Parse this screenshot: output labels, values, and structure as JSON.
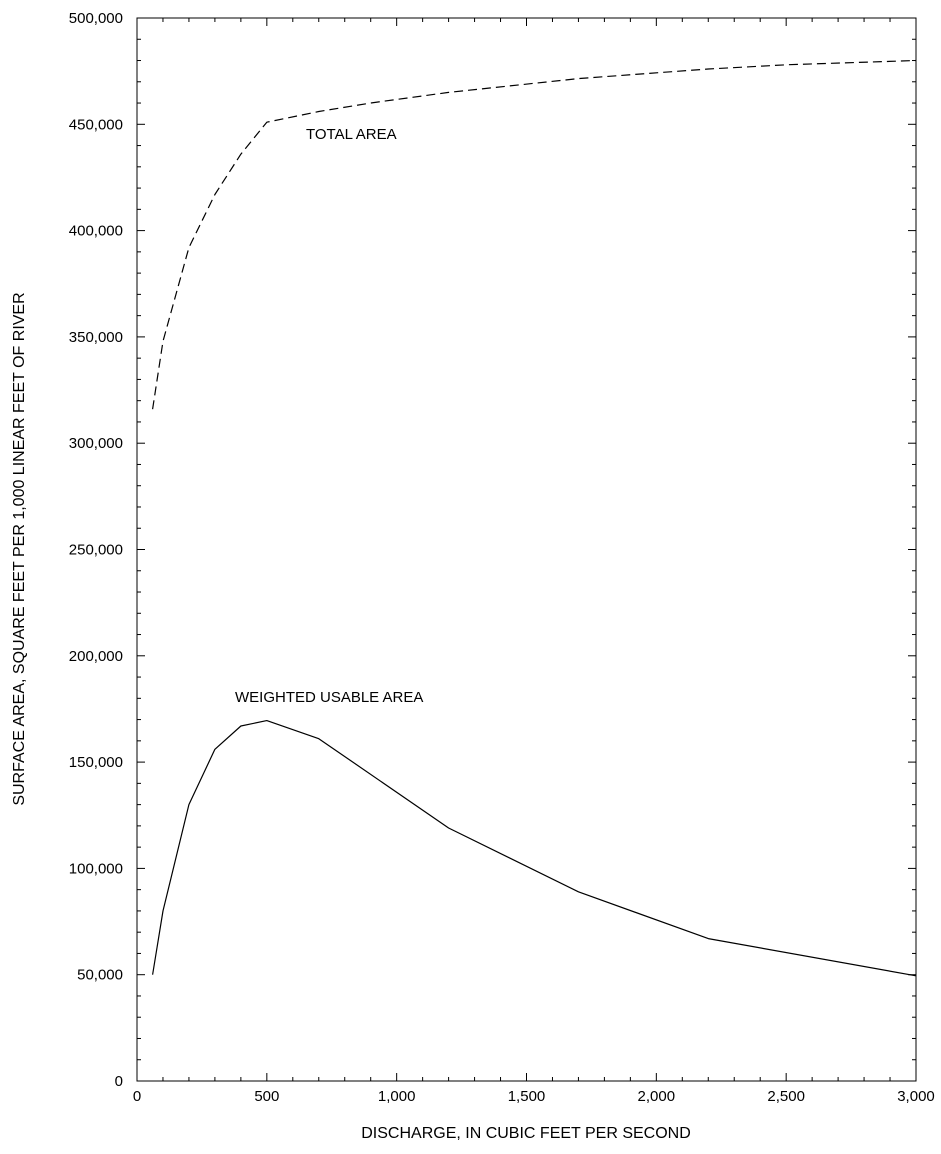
{
  "chart_data": {
    "type": "line",
    "xlabel": "DISCHARGE, IN CUBIC FEET PER SECOND",
    "ylabel": "SURFACE AREA, SQUARE FEET PER 1,000 LINEAR FEET OF RIVER",
    "xlim": [
      0,
      3000
    ],
    "ylim": [
      0,
      500000
    ],
    "x_ticks": [
      0,
      500,
      1000,
      1500,
      2000,
      2500,
      3000
    ],
    "x_tick_labels": [
      "0",
      "500",
      "1,000",
      "1,500",
      "2,000",
      "2,500",
      "3,000"
    ],
    "y_ticks": [
      0,
      50000,
      100000,
      150000,
      200000,
      250000,
      300000,
      350000,
      400000,
      450000,
      500000
    ],
    "y_tick_labels": [
      "0",
      "50,000",
      "100,000",
      "150,000",
      "200,000",
      "250,000",
      "300,000",
      "350,000",
      "400,000",
      "450,000",
      "500,000"
    ],
    "grid": false,
    "series": [
      {
        "name": "TOTAL AREA",
        "style": "dashed",
        "color": "#000000",
        "x": [
          60,
          100,
          200,
          300,
          400,
          500,
          700,
          900,
          1200,
          1700,
          2200,
          2500,
          3000
        ],
        "y": [
          316000,
          348000,
          392000,
          417000,
          436000,
          451000,
          456000,
          460000,
          465000,
          471500,
          476000,
          478000,
          480000
        ]
      },
      {
        "name": "WEIGHTED USABLE AREA",
        "style": "solid",
        "color": "#000000",
        "x": [
          60,
          100,
          200,
          300,
          400,
          500,
          700,
          1200,
          1700,
          2200,
          3000
        ],
        "y": [
          50000,
          80000,
          130000,
          156000,
          167000,
          169500,
          161000,
          119000,
          89000,
          67000,
          49500
        ]
      }
    ],
    "annotations": [
      {
        "text": "TOTAL AREA",
        "series": 0
      },
      {
        "text": "WEIGHTED USABLE AREA",
        "series": 1
      }
    ]
  }
}
